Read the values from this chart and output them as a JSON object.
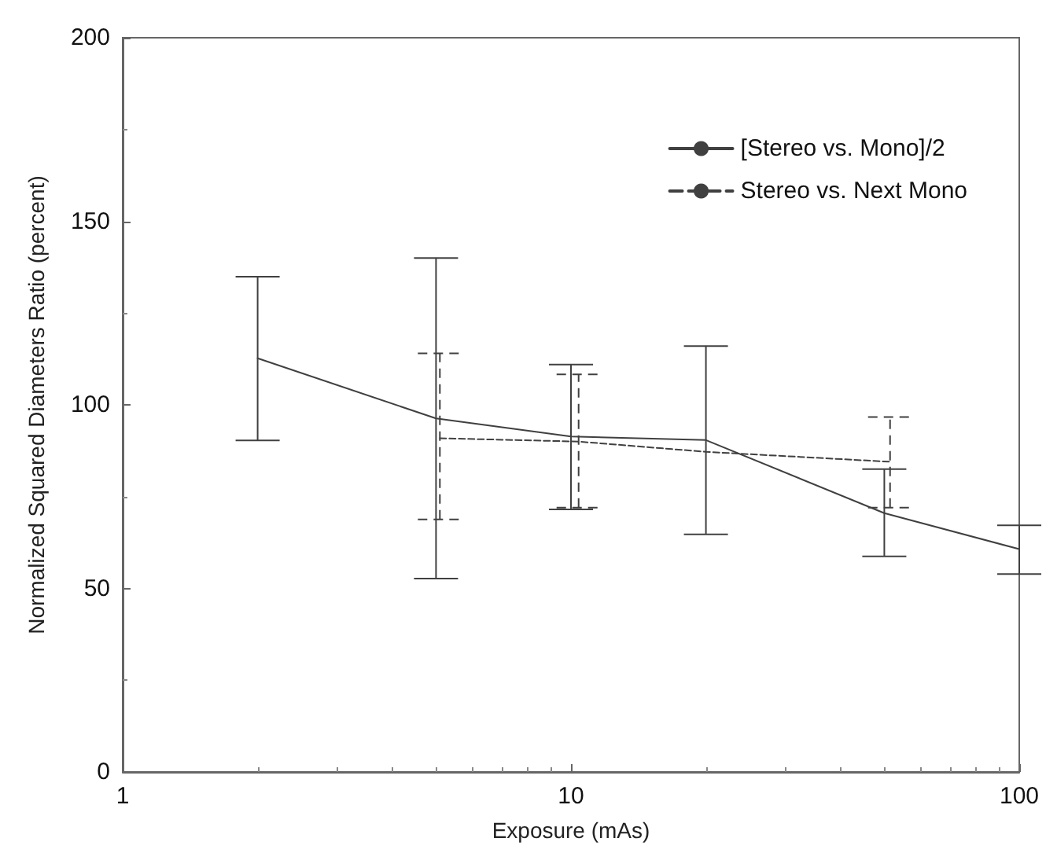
{
  "chart_data": {
    "type": "line",
    "xlabel": "Exposure (mAs)",
    "ylabel": "Normalized Squared Diameters Ratio (percent)",
    "log": "x",
    "xlim": [
      1,
      100
    ],
    "xticks": [
      1,
      10,
      100
    ],
    "ylim": [
      0,
      200
    ],
    "yticks": [
      0,
      50,
      100,
      150,
      200
    ],
    "grid": false,
    "legend": "top right",
    "marker": "none",
    "series": [
      {
        "name": "[Stereo vs. Mono]/2",
        "color": "#404040",
        "line_style": "solid",
        "x": [
          2,
          5,
          10,
          20,
          50,
          100
        ],
        "values": [
          112.7,
          96.3,
          91.4,
          90.4,
          70.5,
          60.7
        ],
        "errors": [
          [
            90.3,
            134.9
          ],
          [
            52.7,
            140
          ],
          [
            71.5,
            111
          ],
          [
            64.7,
            116
          ],
          [
            58.7,
            82.5
          ],
          [
            53.9,
            67.2
          ]
        ]
      },
      {
        "name": "Stereo vs. Next Mono",
        "color": "#404040",
        "line_style": "dashed",
        "x": [
          5.1,
          10.4,
          20,
          51.5
        ],
        "values": [
          90.9,
          90,
          87.2,
          84.5
        ],
        "errors": [
          [
            68.8,
            114
          ],
          [
            72,
            108.3
          ],
          null,
          [
            72,
            96.7
          ]
        ]
      }
    ]
  }
}
